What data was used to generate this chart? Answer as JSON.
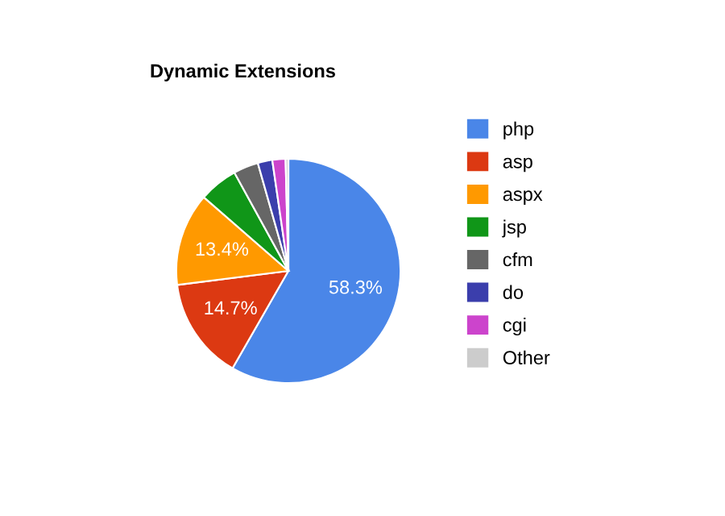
{
  "chart_data": {
    "type": "pie",
    "title": "Dynamic Extensions",
    "categories": [
      "php",
      "asp",
      "aspx",
      "jsp",
      "cfm",
      "do",
      "cgi",
      "Other"
    ],
    "values": [
      58.3,
      14.7,
      13.4,
      5.6,
      3.6,
      2.1,
      1.9,
      0.4
    ],
    "value_labels": [
      "58.3%",
      "14.7%",
      "13.4%",
      null,
      null,
      null,
      null,
      null
    ],
    "colors": [
      "#4a86e8",
      "#dc3912",
      "#ff9900",
      "#109618",
      "#666666",
      "#3b3eac",
      "#cc44cc",
      "#cccccc"
    ],
    "legend": "right"
  }
}
